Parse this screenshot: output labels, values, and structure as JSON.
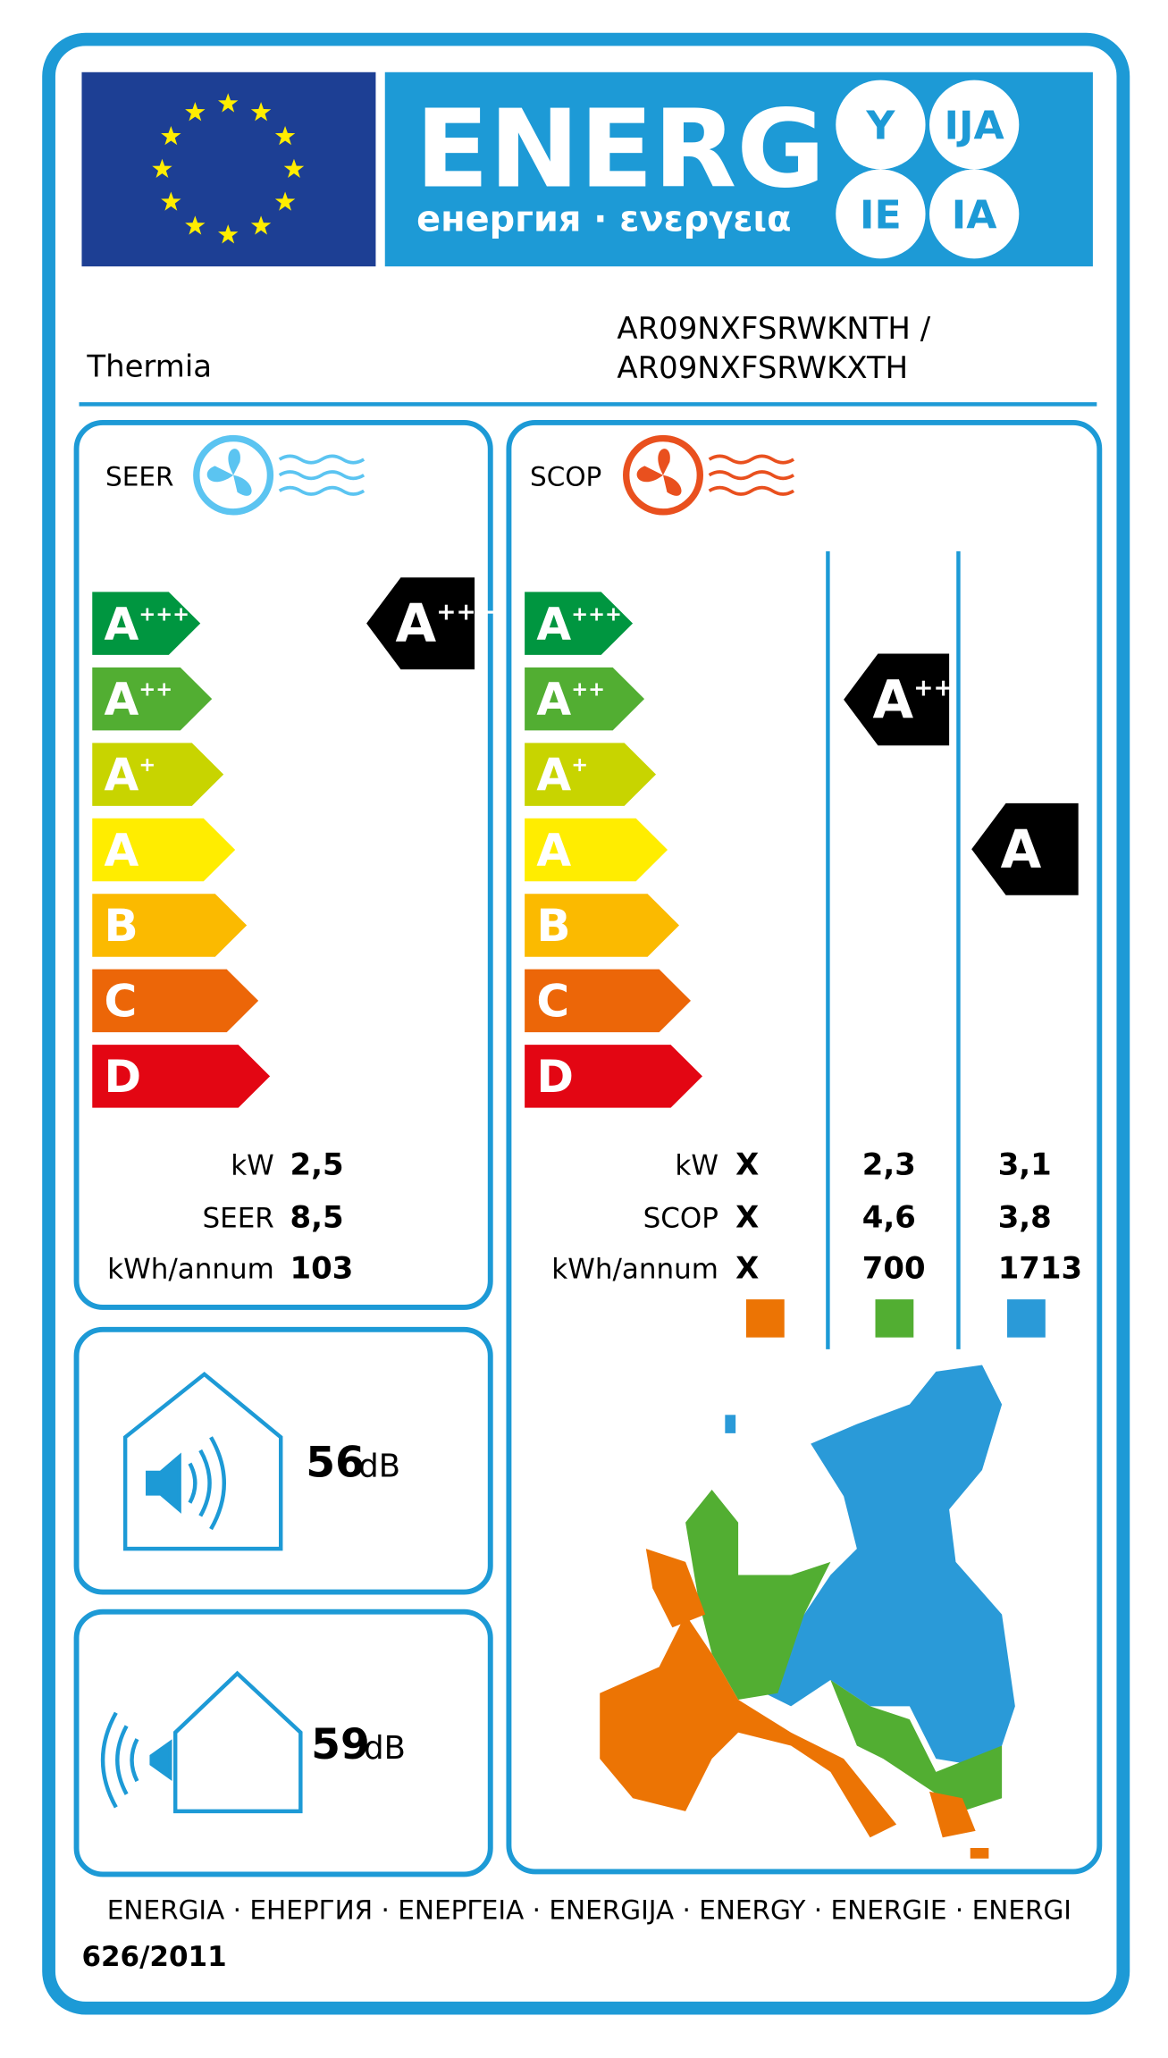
{
  "header": {
    "title": "ENERG",
    "subtitle": "енергия · ενεργεια",
    "suffixes": [
      "Y",
      "IJA",
      "IE",
      "IA"
    ]
  },
  "supplier": "Thermia",
  "model": [
    "AR09NXFSRWKNTH /",
    "AR09NXFSRWKXTH"
  ],
  "classes": [
    {
      "letter": "A",
      "sup": "+++",
      "color": "#009640"
    },
    {
      "letter": "A",
      "sup": "++",
      "color": "#52ae32"
    },
    {
      "letter": "A",
      "sup": "+",
      "color": "#c8d400"
    },
    {
      "letter": "A",
      "color": "#ffed00"
    },
    {
      "letter": "B",
      "color": "#fbba00"
    },
    {
      "letter": "C",
      "color": "#ec6608"
    },
    {
      "letter": "D",
      "color": "#e30613"
    }
  ],
  "cooling": {
    "label": "SEER",
    "rating": {
      "letter": "A",
      "sup": "+++"
    },
    "rows": [
      {
        "label": "kW",
        "value": "2,5"
      },
      {
        "label": "SEER",
        "value": "8,5"
      },
      {
        "label": "kWh/annum",
        "value": "103"
      }
    ]
  },
  "heating": {
    "label": "SCOP",
    "ratings": [
      {
        "letter": "A",
        "sup": "++"
      },
      {
        "letter": "A"
      }
    ],
    "rows": [
      {
        "label": "kW",
        "values": [
          "X",
          "2,3",
          "3,1"
        ]
      },
      {
        "label": "SCOP",
        "values": [
          "X",
          "4,6",
          "3,8"
        ]
      },
      {
        "label": "kWh/annum",
        "values": [
          "X",
          "700",
          "1713"
        ]
      }
    ],
    "zone_colors": [
      "#ec7404",
      "#52ae32",
      "#2a9ad8"
    ]
  },
  "noise": [
    {
      "value": "56",
      "unit": "dB"
    },
    {
      "value": "59",
      "unit": "dB"
    }
  ],
  "footer": {
    "languages": "ENERGIA · ЕНЕРГИЯ · ΕΝΕΡΓΕΙΑ · ENERGIJA · ENERGY · ENERGIE · ENERGI",
    "regulation": "626/2011"
  }
}
